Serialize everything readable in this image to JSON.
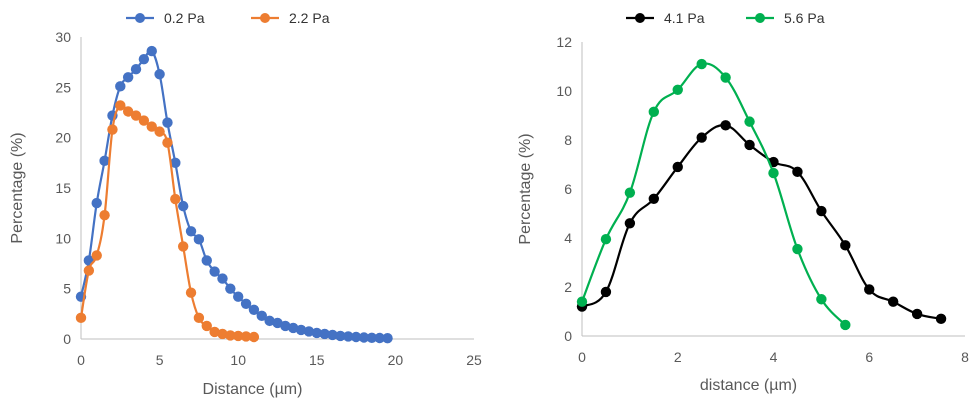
{
  "chart_data": [
    {
      "type": "line",
      "xlabel": "Distance (µm)",
      "ylabel": "Percentage (%)",
      "xlim": [
        0,
        25
      ],
      "ylim": [
        0,
        30
      ],
      "xticks": [
        "0",
        "5",
        "10",
        "15",
        "20",
        "25"
      ],
      "yticks": [
        "0",
        "5",
        "10",
        "15",
        "20",
        "25",
        "30"
      ],
      "grid": false,
      "legend": "top",
      "series": [
        {
          "name": "0.2 Pa",
          "color": "#4472C4",
          "x": [
            0,
            0.5,
            1,
            1.5,
            2,
            2.5,
            3,
            3.5,
            4,
            4.5,
            5,
            5.5,
            6,
            6.5,
            7,
            7.5,
            8,
            8.5,
            9,
            9.5,
            10,
            10.5,
            11,
            11.5,
            12,
            12.5,
            13,
            13.5,
            14,
            14.5,
            15,
            15.5,
            16,
            16.5,
            17,
            17.5,
            18,
            18.5,
            19,
            19.5
          ],
          "y": [
            4.2,
            7.8,
            13.5,
            17.7,
            22.2,
            25.1,
            26.0,
            26.8,
            27.8,
            28.6,
            26.3,
            21.5,
            17.5,
            13.2,
            10.7,
            9.9,
            7.8,
            6.7,
            6.0,
            5.0,
            4.2,
            3.5,
            2.9,
            2.3,
            1.8,
            1.6,
            1.3,
            1.1,
            0.9,
            0.75,
            0.6,
            0.5,
            0.4,
            0.3,
            0.25,
            0.2,
            0.15,
            0.12,
            0.1,
            0.08
          ]
        },
        {
          "name": "2.2 Pa",
          "color": "#ED7D31",
          "x": [
            0,
            0.5,
            1,
            1.5,
            2,
            2.5,
            3,
            3.5,
            4,
            4.5,
            5,
            5.5,
            6,
            6.5,
            7,
            7.5,
            8,
            8.5,
            9,
            9.5,
            10,
            10.5,
            11
          ],
          "y": [
            2.1,
            6.8,
            8.3,
            12.3,
            20.8,
            23.2,
            22.6,
            22.2,
            21.7,
            21.1,
            20.6,
            19.5,
            13.9,
            9.2,
            4.6,
            2.1,
            1.3,
            0.7,
            0.5,
            0.35,
            0.3,
            0.25,
            0.2
          ]
        }
      ]
    },
    {
      "type": "line",
      "xlabel": "distance (µm)",
      "ylabel": "Percentage (%)",
      "xlim": [
        0,
        8
      ],
      "ylim": [
        0,
        12
      ],
      "xticks": [
        "0",
        "2",
        "4",
        "6",
        "8"
      ],
      "yticks": [
        "0",
        "2",
        "4",
        "6",
        "8",
        "10",
        "12"
      ],
      "grid": false,
      "legend": "top",
      "series": [
        {
          "name": "4.1 Pa",
          "color": "#000000",
          "x": [
            0,
            0.5,
            1,
            1.5,
            2,
            2.5,
            3,
            3.5,
            4,
            4.5,
            5,
            5.5,
            6,
            6.5,
            7,
            7.5
          ],
          "y": [
            1.2,
            1.8,
            4.6,
            5.6,
            6.9,
            8.1,
            8.6,
            7.8,
            7.1,
            6.7,
            5.1,
            3.7,
            1.9,
            1.4,
            0.9,
            0.7
          ]
        },
        {
          "name": "5.6 Pa",
          "color": "#00B050",
          "x": [
            0,
            0.5,
            1,
            1.5,
            2,
            2.5,
            3,
            3.5,
            4,
            4.5,
            5,
            5.5
          ],
          "y": [
            1.4,
            3.95,
            5.85,
            9.15,
            10.05,
            11.1,
            10.55,
            8.75,
            6.65,
            3.55,
            1.5,
            0.45
          ]
        }
      ]
    }
  ]
}
